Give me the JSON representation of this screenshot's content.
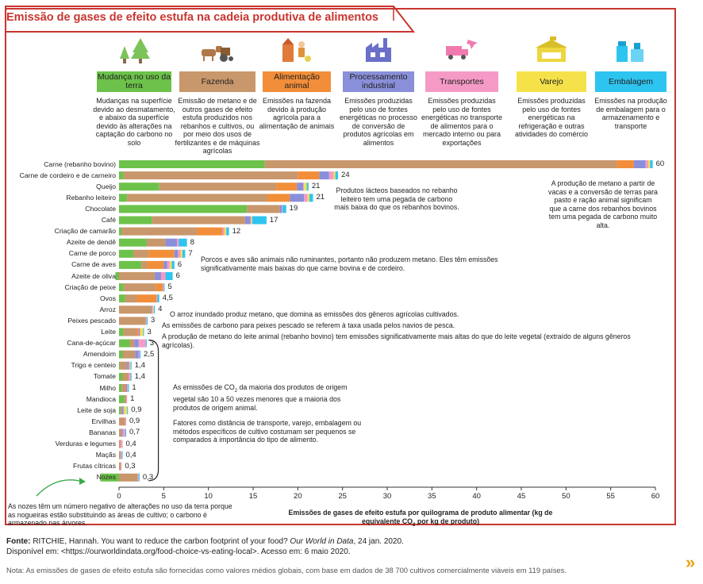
{
  "title": "Emissão de gases de efeito estufa na cadeia produtiva de alimentos",
  "colors": {
    "frame": "#c8362f",
    "land": "#6cc24a",
    "farm": "#c9976c",
    "feed": "#f28e3a",
    "processing": "#8a8fd9",
    "transport": "#f59ac6",
    "retail": "#f5e24a",
    "packaging": "#2ec4f0"
  },
  "categories": [
    {
      "key": "land",
      "label": "Mudança no uso da terra",
      "desc": "Mudanças na superfície devido ao desmatamento, e abaixo da superfície devido às alterações na captação do carbono no solo",
      "icon": "tree-icon"
    },
    {
      "key": "farm",
      "label": "Fazenda",
      "desc": "Emissão de metano e de outros gases de efeito estufa produzidos nos rebanhos e cultivos, ou por meio dos usos de fertilizantes e de máquinas agrícolas",
      "icon": "tractor-icon"
    },
    {
      "key": "feed",
      "label": "Alimentação animal",
      "desc": "Emissões na fazenda devido à produção agrícola para a alimentação de animais",
      "icon": "farmer-icon"
    },
    {
      "key": "processing",
      "label": "Processamento industrial",
      "desc": "Emissões produzidas pelo uso de fontes energéticas no processo de conversão de produtos agrícolas em alimentos",
      "icon": "factory-icon"
    },
    {
      "key": "transport",
      "label": "Transportes",
      "desc": "Emissões produzidas pelo uso de fontes energéticas no transporte de alimentos para o mercado interno ou para exportações",
      "icon": "truck-plane-icon"
    },
    {
      "key": "retail",
      "label": "Varejo",
      "desc": "Emissões produzidas pelo uso de fontes energéticas na refrigeração e outras atividades do comércio",
      "icon": "store-icon"
    },
    {
      "key": "packaging",
      "label": "Embalagem",
      "desc": "Emissões na produção de embalagem para o armazenamento e transporte",
      "icon": "package-icon"
    }
  ],
  "chart_data": {
    "type": "bar",
    "orientation": "horizontal",
    "stacked": true,
    "xlabel": "Emissões de gases de efeito estufa por quilograma de produto alimentar (kg de equivalente CO₂ por kg de produto)",
    "xlim": [
      0,
      60
    ],
    "xticks": [
      0,
      5,
      10,
      15,
      20,
      25,
      30,
      35,
      40,
      45,
      50,
      55,
      60
    ],
    "series_order": [
      "land",
      "farm",
      "feed",
      "processing",
      "transport",
      "retail",
      "packaging"
    ],
    "rows": [
      {
        "name": "Carne (rebanho bovino)",
        "total": "60",
        "values": [
          16.3,
          39.4,
          1.9,
          1.3,
          0.3,
          0.2,
          0.3
        ]
      },
      {
        "name": "Carne de cordeiro e de carneiro",
        "total": "24",
        "values": [
          0.5,
          19.5,
          2.4,
          1.1,
          0.5,
          0.2,
          0.3
        ]
      },
      {
        "name": "Queijo",
        "total": "21",
        "values": [
          4.5,
          13.1,
          2.3,
          0.7,
          0.1,
          0.3,
          0.2
        ]
      },
      {
        "name": "Rebanho leiteiro",
        "total": "21",
        "values": [
          0.9,
          15.7,
          2.5,
          1.6,
          0.4,
          0.2,
          0.4
        ]
      },
      {
        "name": "Chocolate",
        "total": "19",
        "values": [
          14.3,
          3.7,
          0,
          0.2,
          0.1,
          0,
          0.4
        ]
      },
      {
        "name": "Café",
        "total": "17",
        "values": [
          3.7,
          10.4,
          0,
          0.6,
          0.1,
          0.1,
          1.6
        ]
      },
      {
        "name": "Criação de camarão",
        "total": "12",
        "values": [
          0.3,
          8.4,
          2.9,
          0,
          0.2,
          0.2,
          0.3
        ]
      },
      {
        "name": "Azeite de dendê",
        "total": "8",
        "values": [
          3.1,
          2.1,
          0,
          1.3,
          0.2,
          0,
          0.9
        ]
      },
      {
        "name": "Carne de porco",
        "total": "7",
        "values": [
          1.6,
          1.7,
          2.9,
          0.4,
          0.3,
          0.2,
          0.3
        ]
      },
      {
        "name": "Carne de aves",
        "total": "6",
        "values": [
          2.5,
          0.7,
          1.8,
          0.4,
          0.3,
          0.2,
          0.3
        ]
      },
      {
        "name": "Azeite de oliva",
        "total": "6",
        "values": [
          -0.4,
          4.0,
          0,
          0.7,
          0.5,
          0,
          0.8
        ]
      },
      {
        "name": "Criação de peixe",
        "total": "5",
        "values": [
          0.5,
          3.6,
          0.8,
          0,
          0.1,
          0,
          0.1
        ]
      },
      {
        "name": "Ovos",
        "total": "4,5",
        "values": [
          0.7,
          1.3,
          2.2,
          0,
          0.1,
          0,
          0.2
        ]
      },
      {
        "name": "Arroz",
        "total": "4",
        "values": [
          0,
          3.6,
          0,
          0.1,
          0.1,
          0.1,
          0.1
        ]
      },
      {
        "name": "Peixes pescado",
        "total": "3",
        "values": [
          0,
          3.0,
          0,
          0,
          0.1,
          0,
          0.1
        ]
      },
      {
        "name": "Leite",
        "total": "3",
        "values": [
          0.5,
          1.5,
          0.2,
          0.1,
          0.1,
          0.3,
          0.1
        ]
      },
      {
        "name": "Cana-de-açúcar",
        "total": "3",
        "values": [
          1.2,
          0.5,
          0,
          0.5,
          0.8,
          0,
          0.1
        ]
      },
      {
        "name": "Amendoim",
        "total": "2,5",
        "values": [
          0.4,
          1.4,
          0,
          0.4,
          0.1,
          0,
          0.1
        ]
      },
      {
        "name": "Trigo e centeio",
        "total": "1,4",
        "values": [
          0.1,
          0.8,
          0,
          0.2,
          0.1,
          0.1,
          0.1
        ]
      },
      {
        "name": "Tomate",
        "total": "1,4",
        "values": [
          0.4,
          0.7,
          0,
          0,
          0.2,
          0,
          0.1
        ]
      },
      {
        "name": "Milho",
        "total": "1",
        "values": [
          0.3,
          0.5,
          0,
          0.1,
          0.1,
          0,
          0.1
        ]
      },
      {
        "name": "Mandioca",
        "total": "1",
        "values": [
          0.6,
          0.2,
          0,
          0,
          0.1,
          0,
          0
        ]
      },
      {
        "name": "Leite de soja",
        "total": "0,9",
        "values": [
          0.2,
          0.1,
          0,
          0.2,
          0.1,
          0.3,
          0.1
        ]
      },
      {
        "name": "Ervilhas",
        "total": "0,9",
        "values": [
          0,
          0.7,
          0,
          0,
          0.1,
          0,
          0
        ]
      },
      {
        "name": "Bananas",
        "total": "0,7",
        "values": [
          0,
          0.3,
          0,
          0.1,
          0.3,
          0,
          0.1
        ]
      },
      {
        "name": "Verduras e legumes",
        "total": "0,4",
        "values": [
          0,
          0.2,
          0,
          0,
          0.2,
          0,
          0
        ]
      },
      {
        "name": "Maçãs",
        "total": "0,4",
        "values": [
          0,
          0.2,
          0,
          0,
          0.1,
          0,
          0.1
        ]
      },
      {
        "name": "Frutas cítricas",
        "total": "0,3",
        "values": [
          0,
          0.2,
          0,
          0,
          0.1,
          0,
          0
        ]
      },
      {
        "name": "Nozes",
        "total": "0,3",
        "values": [
          -2.1,
          2.1,
          0,
          0,
          0.1,
          0,
          0.1
        ]
      }
    ]
  },
  "annotations": {
    "beef": "A produção de metano a partir de vacas e a conversão de terras para pasto e ração animal significam que a carne dos rebanhos bovinos tem uma pegada de carbono muito alta.",
    "dairy": "Produtos lácteos baseados no rebanho leiteiro tem uma pegada de carbono mais baixa do que os rebanhos bovinos.",
    "pork": "Porcos e aves são animais não ruminantes, portanto não produzem metano. Eles têm emissões significativamente mais baixas do que carne bovina e de cordeiro.",
    "rice": "O arroz inundado produz metano, que domina as emissões dos gêneros agrícolas cultivados.",
    "fish": "As emissões de carbono para peixes pescado se referem à taxa usada pelos navios de pesca.",
    "milk": "A produção de metano do leite animal (rebanho bovino) tem emissões significativamente mais altas do que do leite vegetal (extraído de alguns gêneros agrícolas).",
    "plants_1_pre": "As emissões de CO",
    "plants_1_sub": "2",
    "plants_1_post": " da maioria dos produtos de origem vegetal são 10 a 50 vezes menores que a maioria dos produtos de origem animal.",
    "plants_2": "Fatores como distância de transporte, varejo, embalagem ou métodos específicos de cultivo costumam ser pequenos se comparados à importância do tipo de alimento.",
    "nuts": "As nozes têm um número negativo de alterações no uso da terra porque as nogueiras estão substituindo as áreas de cultivo; o carbono é armazenado nas árvores."
  },
  "source": {
    "label": "Fonte:",
    "text1": " RITCHIE, Hannah. You want to reduce the carbon footprint of your food? ",
    "italic": "Our World in Data",
    "text2": ", 24 jan. 2020.",
    "line2": "Disponível em: <https://ourworldindata.org/food-choice-vs-eating-local>. Acesso em: 6 maio 2020."
  },
  "note": "Nota: As emissões de gases de efeito estufa são fornecidas como valores médios globais, com base em dados de 38 700 cultivos comercialmente viáveis em 119 países.",
  "next_icon": "chevron-right-icon"
}
